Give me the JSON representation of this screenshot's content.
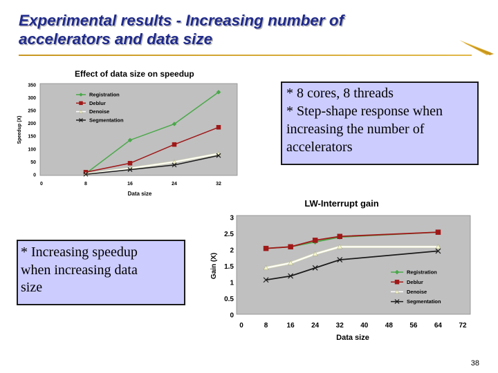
{
  "slide": {
    "title_line1": "Experimental results - Increasing number of",
    "title_line2": "accelerators and data size",
    "note1_lines": [
      "* 8 cores, 8 threads",
      "* Step-shape response when",
      "increasing the number of",
      "accelerators"
    ],
    "note2_lines": [
      "* Increasing speedup",
      "when increasing data",
      "size"
    ],
    "page_number": "38",
    "colors": {
      "title": "#1f2a8c",
      "note_bg": "#ccccff",
      "plot_bg": "#c0c0c0",
      "accent": "#d4a63a"
    }
  },
  "chart_data": [
    {
      "type": "line",
      "title": "Effect of data size on speedup",
      "xlabel": "Data size",
      "ylabel": "Speedup (X)",
      "x_ticks": [
        "0",
        "8",
        "16",
        "24",
        "32"
      ],
      "y_ticks": [
        "0",
        "50",
        "100",
        "150",
        "200",
        "250",
        "300",
        "350"
      ],
      "xlim": [
        0,
        40
      ],
      "ylim": [
        0,
        350
      ],
      "legend_position": "top-left",
      "series": [
        {
          "name": "Registration",
          "color": "#4aa84a",
          "marker": "diamond",
          "x": [
            8,
            16,
            24,
            32
          ],
          "values": [
            5,
            135,
            198,
            322
          ]
        },
        {
          "name": "Deblur",
          "color": "#a01818",
          "marker": "square",
          "x": [
            8,
            16,
            24,
            32
          ],
          "values": [
            10,
            45,
            118,
            185
          ]
        },
        {
          "name": "Denoise",
          "color": "#f4f4cc",
          "marker": "triangle",
          "x": [
            8,
            16,
            24,
            32
          ],
          "values": [
            3,
            25,
            50,
            82
          ]
        },
        {
          "name": "Segmentation",
          "color": "#1a1a1a",
          "marker": "x",
          "x": [
            8,
            16,
            24,
            32
          ],
          "values": [
            2,
            20,
            38,
            75
          ]
        }
      ]
    },
    {
      "type": "line",
      "title": "LW-Interrupt gain",
      "xlabel": "Data size",
      "ylabel": "Gain (X)",
      "x_ticks": [
        "0",
        "8",
        "16",
        "24",
        "32",
        "40",
        "48",
        "56",
        "64",
        "72"
      ],
      "y_ticks": [
        "0",
        "0.5",
        "1",
        "1.5",
        "2",
        "2.5",
        "3"
      ],
      "xlim": [
        0,
        72
      ],
      "ylim": [
        0,
        3
      ],
      "legend_position": "bottom-right",
      "series": [
        {
          "name": "Registration",
          "color": "#4aa84a",
          "marker": "diamond",
          "x": [
            8,
            16,
            24,
            32,
            64
          ],
          "values": [
            2.05,
            2.1,
            2.25,
            2.4,
            2.55
          ]
        },
        {
          "name": "Deblur",
          "color": "#a01818",
          "marker": "square",
          "x": [
            8,
            16,
            24,
            32,
            64
          ],
          "values": [
            2.05,
            2.1,
            2.3,
            2.42,
            2.55
          ]
        },
        {
          "name": "Denoise",
          "color": "#f4f4cc",
          "marker": "triangle",
          "x": [
            8,
            16,
            24,
            32,
            64
          ],
          "values": [
            1.45,
            1.6,
            1.88,
            2.1,
            2.1
          ]
        },
        {
          "name": "Segmentation",
          "color": "#1a1a1a",
          "marker": "x",
          "x": [
            8,
            16,
            24,
            32,
            64
          ],
          "values": [
            1.08,
            1.2,
            1.45,
            1.7,
            1.97
          ]
        }
      ]
    }
  ]
}
